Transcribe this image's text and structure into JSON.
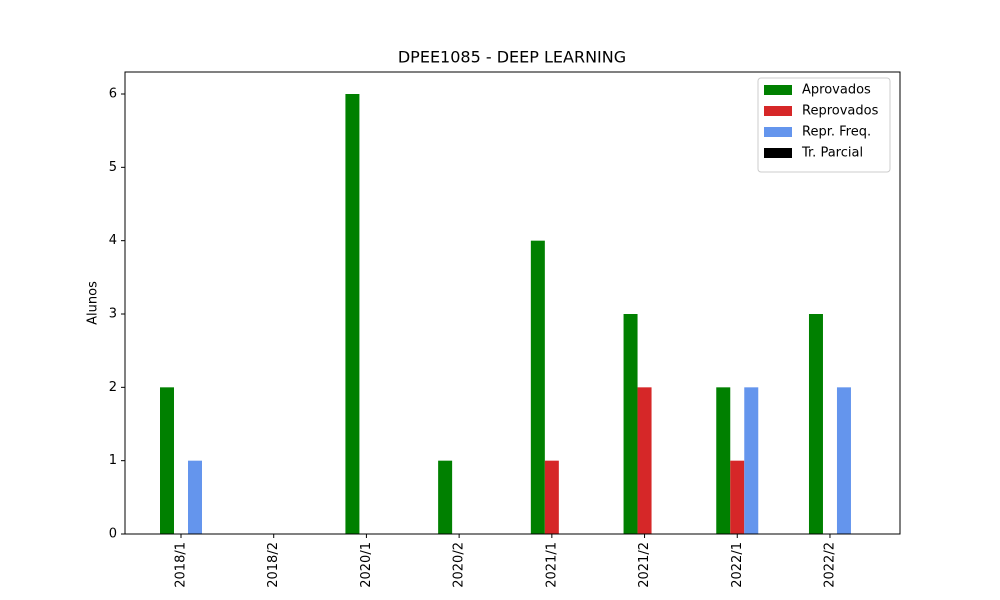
{
  "chart_data": {
    "type": "bar",
    "title": "DPEE1085 - DEEP LEARNING",
    "ylabel": "Alunos",
    "categories": [
      "2018/1",
      "2018/2",
      "2020/1",
      "2020/2",
      "2021/1",
      "2021/2",
      "2022/1",
      "2022/2"
    ],
    "series": [
      {
        "name": "Aprovados",
        "color": "#008000",
        "values": [
          2,
          0,
          6,
          1,
          4,
          3,
          2,
          3
        ]
      },
      {
        "name": "Reprovados",
        "color": "#d62728",
        "values": [
          0,
          0,
          0,
          0,
          1,
          2,
          1,
          0
        ]
      },
      {
        "name": "Repr. Freq.",
        "color": "#6495ed",
        "values": [
          1,
          0,
          0,
          0,
          0,
          0,
          2,
          2
        ]
      },
      {
        "name": "Tr. Parcial",
        "color": "#000000",
        "values": [
          0,
          0,
          0,
          0,
          0,
          0,
          0,
          0
        ]
      }
    ],
    "ylim": [
      0,
      6.3
    ],
    "yticks": [
      0,
      1,
      2,
      3,
      4,
      5,
      6
    ],
    "grid": false,
    "legend": "upper right"
  }
}
